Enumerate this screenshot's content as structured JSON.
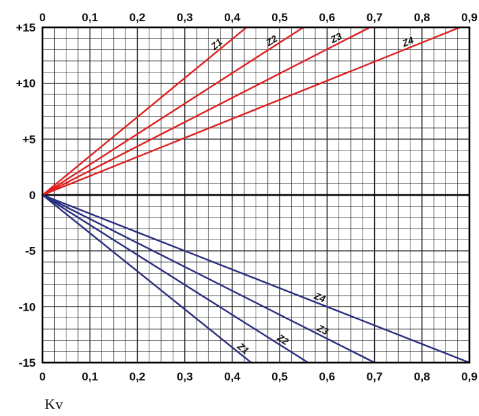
{
  "chart_data": {
    "type": "line",
    "title": "",
    "xlabel": "Kv",
    "ylabel": "",
    "xlim": [
      0,
      0.9
    ],
    "ylim": [
      -15,
      15
    ],
    "x_ticks_top": [
      "0",
      "0,1",
      "0,2",
      "0,3",
      "0,4",
      "0,5",
      "0,6",
      "0,7",
      "0,8",
      "0,9"
    ],
    "x_ticks_bottom": [
      "0",
      "0,1",
      "0,2",
      "0,3",
      "0,4",
      "0,5",
      "0,6",
      "0,7",
      "0,8",
      "0,9"
    ],
    "y_ticks": [
      {
        "value": 15,
        "label": "+15"
      },
      {
        "value": 10,
        "label": "+10"
      },
      {
        "value": 5,
        "label": "+5"
      },
      {
        "value": 0,
        "label": "0"
      },
      {
        "value": -5,
        "label": "-5"
      },
      {
        "value": -10,
        "label": "-10"
      },
      {
        "value": -15,
        "label": "-15"
      }
    ],
    "grid": true,
    "grid_minor_x_step": 0.025,
    "grid_minor_y_step": 1,
    "series": [
      {
        "name": "Z1",
        "color": "#e02020",
        "points": [
          [
            0,
            0
          ],
          [
            0.43,
            15
          ]
        ],
        "label_at": 0.375
      },
      {
        "name": "Z2",
        "color": "#e02020",
        "points": [
          [
            0,
            0
          ],
          [
            0.55,
            15
          ]
        ],
        "label_at": 0.49
      },
      {
        "name": "Z3",
        "color": "#e02020",
        "points": [
          [
            0,
            0
          ],
          [
            0.69,
            15
          ]
        ],
        "label_at": 0.625
      },
      {
        "name": "Z4",
        "color": "#e02020",
        "points": [
          [
            0,
            0
          ],
          [
            0.88,
            15
          ]
        ],
        "label_at": 0.775
      },
      {
        "name": "Z1",
        "color": "#2a2f80",
        "points": [
          [
            0,
            0
          ],
          [
            0.44,
            -15
          ]
        ],
        "label_at": 0.415
      },
      {
        "name": "Z2",
        "color": "#2a2f80",
        "points": [
          [
            0,
            0
          ],
          [
            0.56,
            -15
          ]
        ],
        "label_at": 0.5
      },
      {
        "name": "Z3",
        "color": "#2a2f80",
        "points": [
          [
            0,
            0
          ],
          [
            0.7,
            -15
          ]
        ],
        "label_at": 0.585
      },
      {
        "name": "Z4",
        "color": "#2a2f80",
        "points": [
          [
            0,
            0
          ],
          [
            0.9,
            -15
          ]
        ],
        "label_at": 0.58
      }
    ]
  }
}
